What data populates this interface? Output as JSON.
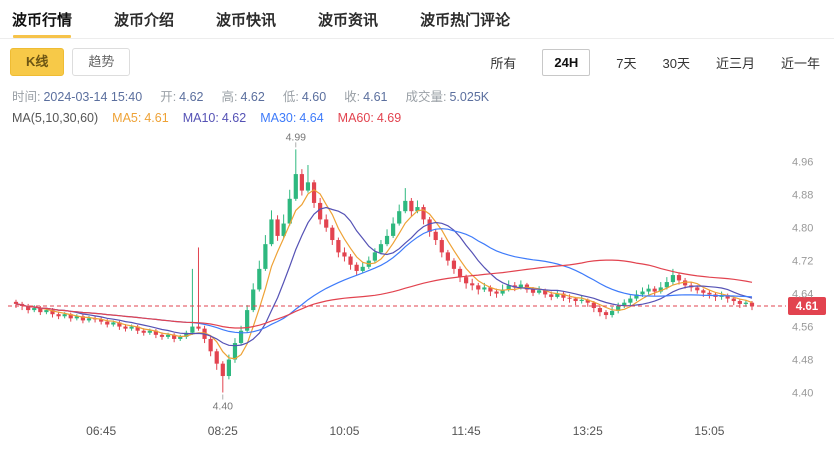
{
  "nav": {
    "tabs": [
      {
        "label": "波币行情",
        "active": true
      },
      {
        "label": "波币介绍",
        "active": false
      },
      {
        "label": "波币快讯",
        "active": false
      },
      {
        "label": "波币资讯",
        "active": false
      },
      {
        "label": "波币热门评论",
        "active": false
      }
    ]
  },
  "toolbar": {
    "chart_type_buttons": [
      {
        "label": "K线",
        "active": true
      },
      {
        "label": "趋势",
        "active": false
      }
    ],
    "range_buttons": [
      {
        "label": "所有",
        "active": false
      },
      {
        "label": "24H",
        "active": true
      },
      {
        "label": "7天",
        "active": false
      },
      {
        "label": "30天",
        "active": false
      },
      {
        "label": "近三月",
        "active": false
      },
      {
        "label": "近一年",
        "active": false
      }
    ]
  },
  "info_bar": {
    "fields": [
      {
        "label": "时间:",
        "value": "2024-03-14 15:40"
      },
      {
        "label": "开:",
        "value": "4.62"
      },
      {
        "label": "高:",
        "value": "4.62"
      },
      {
        "label": "低:",
        "value": "4.60"
      },
      {
        "label": "收:",
        "value": "4.61"
      },
      {
        "label": "成交量:",
        "value": "5.025K"
      }
    ],
    "ma_label": "MA(5,10,30,60)",
    "ma_values": [
      {
        "label": "MA5:",
        "value": "4.61",
        "color": "#eea236"
      },
      {
        "label": "MA10:",
        "value": "4.62",
        "color": "#5552b5"
      },
      {
        "label": "MA30:",
        "value": "4.64",
        "color": "#3e7bfa"
      },
      {
        "label": "MA60:",
        "value": "4.69",
        "color": "#e2434f"
      }
    ]
  },
  "chart_data": {
    "type": "candlestick",
    "y_axis_labels": [
      "4.96",
      "4.88",
      "4.80",
      "4.72",
      "4.64",
      "4.56",
      "4.48",
      "4.40"
    ],
    "y_range": [
      4.36,
      5.02
    ],
    "x_axis_labels": [
      {
        "label": "06:45",
        "index": 14
      },
      {
        "label": "08:25",
        "index": 34
      },
      {
        "label": "10:05",
        "index": 54
      },
      {
        "label": "11:45",
        "index": 74
      },
      {
        "label": "13:25",
        "index": 94
      },
      {
        "label": "15:05",
        "index": 114
      }
    ],
    "current_price": {
      "value": 4.61,
      "label": "4.61"
    },
    "annotations": [
      {
        "text": "4.99",
        "index": 46,
        "value": 4.99,
        "position": "above"
      },
      {
        "text": "4.40",
        "index": 34,
        "value": 4.4,
        "position": "below"
      }
    ],
    "ma_periods": [
      {
        "period": 5,
        "color": "#eea236"
      },
      {
        "period": 10,
        "color": "#5552b5"
      },
      {
        "period": 30,
        "color": "#3e7bfa"
      },
      {
        "period": 60,
        "color": "#e2434f"
      }
    ],
    "colors": {
      "up": "#2eb87f",
      "down": "#e2434f",
      "axis_text": "#999999"
    },
    "candles": [
      [
        4.62,
        4.625,
        4.605,
        4.615
      ],
      [
        4.615,
        4.62,
        4.6,
        4.61
      ],
      [
        4.61,
        4.615,
        4.592,
        4.6
      ],
      [
        4.6,
        4.612,
        4.595,
        4.605
      ],
      [
        4.605,
        4.61,
        4.588,
        4.595
      ],
      [
        4.595,
        4.606,
        4.59,
        4.6
      ],
      [
        4.6,
        4.605,
        4.582,
        4.59
      ],
      [
        4.59,
        4.596,
        4.578,
        4.585
      ],
      [
        4.585,
        4.595,
        4.58,
        4.59
      ],
      [
        4.59,
        4.594,
        4.572,
        4.58
      ],
      [
        4.58,
        4.59,
        4.575,
        4.585
      ],
      [
        4.585,
        4.59,
        4.568,
        4.575
      ],
      [
        4.575,
        4.586,
        4.57,
        4.58
      ],
      [
        4.58,
        4.585,
        4.57,
        4.578
      ],
      [
        4.578,
        4.582,
        4.565,
        4.572
      ],
      [
        4.572,
        4.578,
        4.558,
        4.565
      ],
      [
        4.565,
        4.575,
        4.56,
        4.57
      ],
      [
        4.57,
        4.574,
        4.552,
        4.56
      ],
      [
        4.56,
        4.566,
        4.548,
        4.555
      ],
      [
        4.555,
        4.565,
        4.55,
        4.56
      ],
      [
        4.56,
        4.564,
        4.542,
        4.55
      ],
      [
        4.55,
        4.556,
        4.538,
        4.545
      ],
      [
        4.545,
        4.555,
        4.54,
        4.55
      ],
      [
        4.55,
        4.554,
        4.532,
        4.54
      ],
      [
        4.54,
        4.546,
        4.528,
        4.535
      ],
      [
        4.535,
        4.545,
        4.53,
        4.54
      ],
      [
        4.54,
        4.544,
        4.522,
        4.53
      ],
      [
        4.53,
        4.54,
        4.525,
        4.535
      ],
      [
        4.535,
        4.55,
        4.53,
        4.545
      ],
      [
        4.545,
        4.7,
        4.54,
        4.56
      ],
      [
        4.56,
        4.752,
        4.55,
        4.555
      ],
      [
        4.555,
        4.562,
        4.52,
        4.53
      ],
      [
        4.53,
        4.536,
        4.488,
        4.5
      ],
      [
        4.5,
        4.506,
        4.455,
        4.47
      ],
      [
        4.47,
        4.476,
        4.4,
        4.44
      ],
      [
        4.44,
        4.492,
        4.432,
        4.48
      ],
      [
        4.48,
        4.532,
        4.472,
        4.52
      ],
      [
        4.52,
        4.562,
        4.515,
        4.55
      ],
      [
        4.55,
        4.612,
        4.545,
        4.6
      ],
      [
        4.6,
        4.665,
        4.595,
        4.65
      ],
      [
        4.65,
        4.72,
        4.645,
        4.7
      ],
      [
        4.7,
        4.782,
        4.695,
        4.76
      ],
      [
        4.76,
        4.842,
        4.755,
        4.82
      ],
      [
        4.82,
        4.83,
        4.768,
        4.78
      ],
      [
        4.78,
        4.832,
        4.775,
        4.81
      ],
      [
        4.81,
        4.892,
        4.805,
        4.87
      ],
      [
        4.87,
        4.99,
        4.865,
        4.93
      ],
      [
        4.93,
        4.942,
        4.878,
        4.89
      ],
      [
        4.89,
        4.952,
        4.885,
        4.91
      ],
      [
        4.91,
        4.916,
        4.848,
        4.86
      ],
      [
        4.86,
        4.872,
        4.808,
        4.82
      ],
      [
        4.82,
        4.832,
        4.79,
        4.8
      ],
      [
        4.8,
        4.806,
        4.758,
        4.77
      ],
      [
        4.77,
        4.776,
        4.728,
        4.74
      ],
      [
        4.74,
        4.752,
        4.718,
        4.73
      ],
      [
        4.73,
        4.736,
        4.698,
        4.71
      ],
      [
        4.71,
        4.716,
        4.685,
        4.695
      ],
      [
        4.695,
        4.716,
        4.69,
        4.705
      ],
      [
        4.705,
        4.73,
        4.7,
        4.72
      ],
      [
        4.72,
        4.75,
        4.715,
        4.74
      ],
      [
        4.74,
        4.77,
        4.735,
        4.76
      ],
      [
        4.76,
        4.796,
        4.755,
        4.78
      ],
      [
        4.78,
        4.825,
        4.775,
        4.81
      ],
      [
        4.81,
        4.856,
        4.805,
        4.84
      ],
      [
        4.84,
        4.896,
        4.835,
        4.865
      ],
      [
        4.865,
        4.872,
        4.828,
        4.84
      ],
      [
        4.84,
        4.866,
        4.835,
        4.85
      ],
      [
        4.85,
        4.856,
        4.808,
        4.82
      ],
      [
        4.82,
        4.826,
        4.778,
        4.79
      ],
      [
        4.79,
        4.796,
        4.758,
        4.77
      ],
      [
        4.77,
        4.776,
        4.728,
        4.74
      ],
      [
        4.74,
        4.746,
        4.708,
        4.72
      ],
      [
        4.72,
        4.726,
        4.688,
        4.7
      ],
      [
        4.7,
        4.706,
        4.668,
        4.68
      ],
      [
        4.68,
        4.686,
        4.652,
        4.665
      ],
      [
        4.665,
        4.676,
        4.648,
        4.66
      ],
      [
        4.66,
        4.666,
        4.638,
        4.65
      ],
      [
        4.65,
        4.666,
        4.644,
        4.655
      ],
      [
        4.655,
        4.66,
        4.634,
        4.645
      ],
      [
        4.645,
        4.652,
        4.63,
        4.64
      ],
      [
        4.64,
        4.662,
        4.635,
        4.65
      ],
      [
        4.65,
        4.672,
        4.645,
        4.66
      ],
      [
        4.66,
        4.668,
        4.646,
        4.655
      ],
      [
        4.655,
        4.672,
        4.65,
        4.662
      ],
      [
        4.662,
        4.666,
        4.642,
        4.65
      ],
      [
        4.65,
        4.656,
        4.634,
        4.642
      ],
      [
        4.642,
        4.658,
        4.638,
        4.648
      ],
      [
        4.648,
        4.652,
        4.63,
        4.638
      ],
      [
        4.638,
        4.645,
        4.624,
        4.632
      ],
      [
        4.632,
        4.648,
        4.628,
        4.64
      ],
      [
        4.64,
        4.645,
        4.622,
        4.63
      ],
      [
        4.63,
        4.638,
        4.618,
        4.628
      ],
      [
        4.628,
        4.632,
        4.612,
        4.622
      ],
      [
        4.622,
        4.636,
        4.616,
        4.625
      ],
      [
        4.625,
        4.628,
        4.608,
        4.618
      ],
      [
        4.618,
        4.622,
        4.595,
        4.605
      ],
      [
        4.605,
        4.61,
        4.585,
        4.595
      ],
      [
        4.595,
        4.6,
        4.578,
        4.588
      ],
      [
        4.588,
        4.608,
        4.582,
        4.598
      ],
      [
        4.598,
        4.618,
        4.592,
        4.61
      ],
      [
        4.61,
        4.626,
        4.605,
        4.618
      ],
      [
        4.618,
        4.636,
        4.612,
        4.628
      ],
      [
        4.628,
        4.648,
        4.622,
        4.638
      ],
      [
        4.638,
        4.655,
        4.632,
        4.645
      ],
      [
        4.645,
        4.662,
        4.638,
        4.652
      ],
      [
        4.652,
        4.658,
        4.635,
        4.645
      ],
      [
        4.645,
        4.668,
        4.64,
        4.655
      ],
      [
        4.655,
        4.68,
        4.65,
        4.668
      ],
      [
        4.668,
        4.7,
        4.662,
        4.685
      ],
      [
        4.685,
        4.69,
        4.662,
        4.672
      ],
      [
        4.672,
        4.678,
        4.652,
        4.66
      ],
      [
        4.66,
        4.668,
        4.645,
        4.655
      ],
      [
        4.655,
        4.66,
        4.64,
        4.648
      ],
      [
        4.648,
        4.652,
        4.632,
        4.642
      ],
      [
        4.642,
        4.648,
        4.628,
        4.638
      ],
      [
        4.638,
        4.642,
        4.622,
        4.632
      ],
      [
        4.632,
        4.645,
        4.625,
        4.636
      ],
      [
        4.636,
        4.64,
        4.618,
        4.628
      ],
      [
        4.628,
        4.632,
        4.612,
        4.622
      ],
      [
        4.622,
        4.626,
        4.605,
        4.615
      ],
      [
        4.615,
        4.625,
        4.608,
        4.618
      ],
      [
        4.618,
        4.622,
        4.6,
        4.61
      ]
    ]
  }
}
